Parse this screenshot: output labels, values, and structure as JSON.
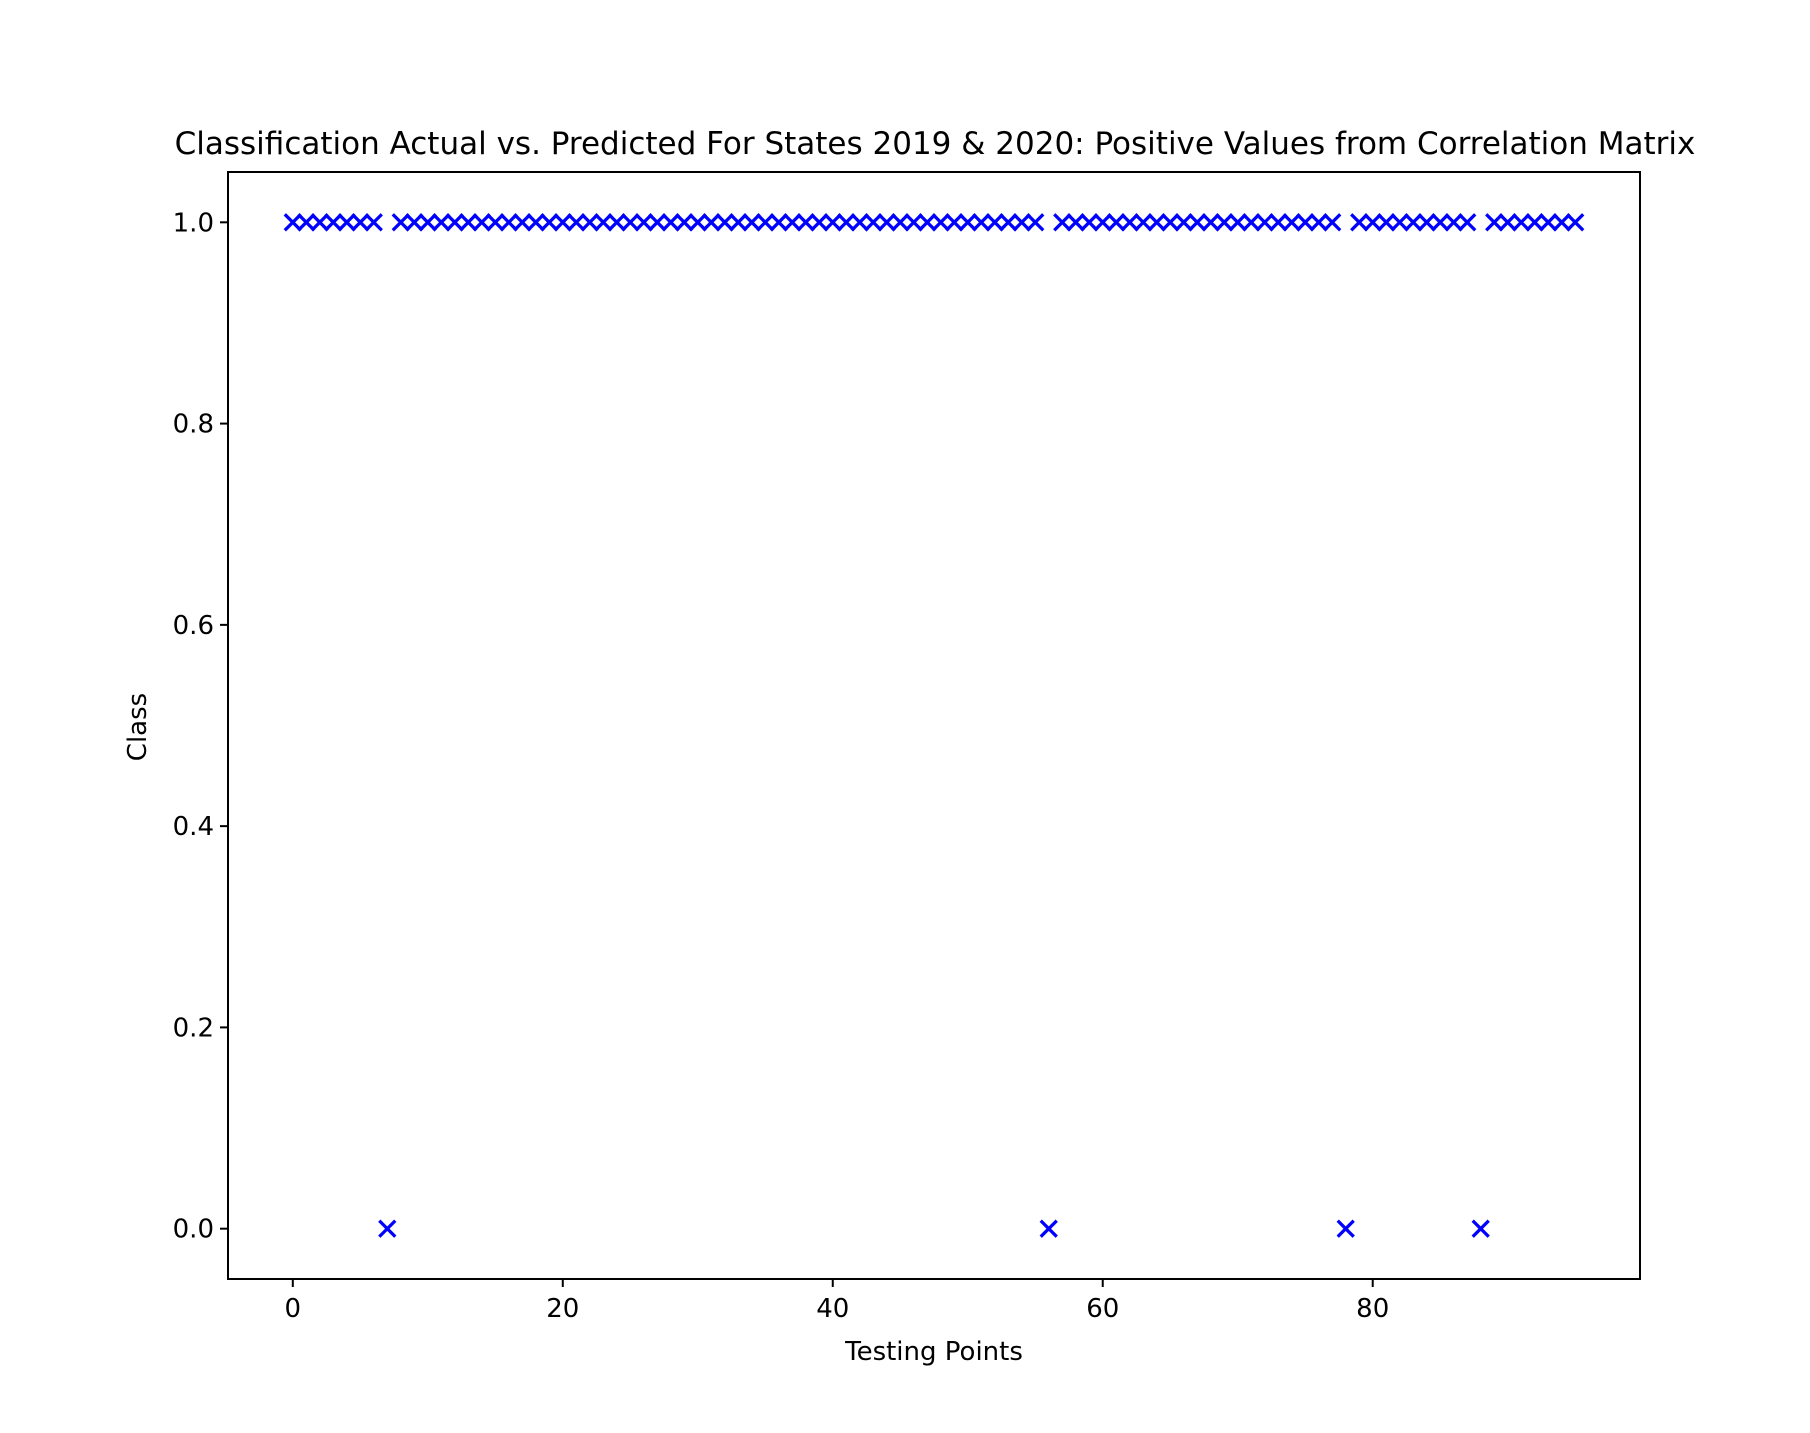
{
  "chart_data": {
    "type": "scatter",
    "title": "Classification Actual vs. Predicted For States 2019 & 2020: Positive Values from Correlation Matrix",
    "xlabel": "Testing Points",
    "ylabel": "Class",
    "xlim": [
      -4.8,
      99.8
    ],
    "ylim": [
      -0.05,
      1.05
    ],
    "x_ticks": [
      0,
      20,
      40,
      60,
      80
    ],
    "y_ticks": [
      0.0,
      0.2,
      0.4,
      0.6,
      0.8,
      1.0
    ],
    "x_tick_labels": [
      "0",
      "20",
      "40",
      "60",
      "80"
    ],
    "y_tick_labels": [
      "0.0",
      "0.2",
      "0.4",
      "0.6",
      "0.8",
      "1.0"
    ],
    "marker": "x",
    "marker_color": "#0000ff",
    "grid": false,
    "legend": null,
    "series": [
      {
        "x": [
          0,
          1,
          2,
          3,
          4,
          5,
          6,
          7,
          8,
          9,
          10,
          11,
          12,
          13,
          14,
          15,
          16,
          17,
          18,
          19,
          20,
          21,
          22,
          23,
          24,
          25,
          26,
          27,
          28,
          29,
          30,
          31,
          32,
          33,
          34,
          35,
          36,
          37,
          38,
          39,
          40,
          41,
          42,
          43,
          44,
          45,
          46,
          47,
          48,
          49,
          50,
          51,
          52,
          53,
          54,
          55,
          56,
          57,
          58,
          59,
          60,
          61,
          62,
          63,
          64,
          65,
          66,
          67,
          68,
          69,
          70,
          71,
          72,
          73,
          74,
          75,
          76,
          77,
          78,
          79,
          80,
          81,
          82,
          83,
          84,
          85,
          86,
          87,
          88,
          89,
          90,
          91,
          92,
          93,
          94,
          95
        ],
        "y": [
          1,
          1,
          1,
          1,
          1,
          1,
          1,
          0,
          1,
          1,
          1,
          1,
          1,
          1,
          1,
          1,
          1,
          1,
          1,
          1,
          1,
          1,
          1,
          1,
          1,
          1,
          1,
          1,
          1,
          1,
          1,
          1,
          1,
          1,
          1,
          1,
          1,
          1,
          1,
          1,
          1,
          1,
          1,
          1,
          1,
          1,
          1,
          1,
          1,
          1,
          1,
          1,
          1,
          1,
          1,
          1,
          0,
          1,
          1,
          1,
          1,
          1,
          1,
          1,
          1,
          1,
          1,
          1,
          1,
          1,
          1,
          1,
          1,
          1,
          1,
          1,
          1,
          1,
          0,
          1,
          1,
          1,
          1,
          1,
          1,
          1,
          1,
          1,
          0,
          1,
          1,
          1,
          1,
          1,
          1,
          1
        ]
      }
    ]
  }
}
